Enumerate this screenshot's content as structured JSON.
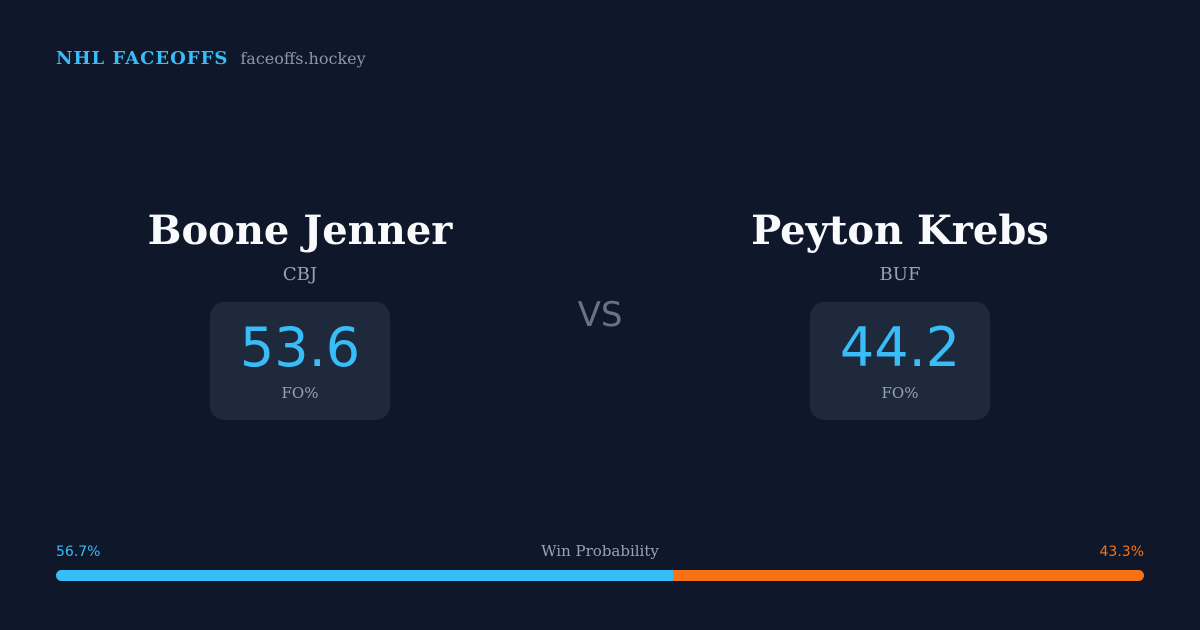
{
  "brand": {
    "name": "NHL FACEOFFS",
    "domain": "faceoffs.hockey"
  },
  "vs_label": "VS",
  "players": {
    "left": {
      "name": "Boone Jenner",
      "team": "CBJ",
      "stat_value": "53.6",
      "stat_label": "FO%"
    },
    "right": {
      "name": "Peyton Krebs",
      "team": "BUF",
      "stat_value": "44.2",
      "stat_label": "FO%"
    }
  },
  "win_probability": {
    "label": "Win Probability",
    "left_text": "56.7%",
    "right_text": "43.3%",
    "left_percent": 56.7,
    "right_percent": 43.3
  },
  "colors": {
    "background": "#0f172a",
    "accent_left": "#38bdf8",
    "accent_right": "#f97316",
    "card": "#1e293b"
  }
}
